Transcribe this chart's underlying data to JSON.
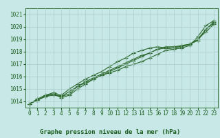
{
  "title": "Graphe pression niveau de la mer (hPa)",
  "xlabel_hours": [
    0,
    1,
    2,
    3,
    4,
    5,
    6,
    7,
    8,
    9,
    10,
    11,
    12,
    13,
    14,
    15,
    16,
    17,
    18,
    19,
    20,
    21,
    22,
    23
  ],
  "series": [
    [
      1013.8,
      1014.1,
      1014.4,
      1014.5,
      1014.4,
      1014.6,
      1015.2,
      1015.5,
      1015.8,
      1016.1,
      1016.3,
      1016.5,
      1016.8,
      1017.0,
      1017.2,
      1017.5,
      1017.8,
      1018.1,
      1018.2,
      1018.3,
      1018.5,
      1019.2,
      1020.1,
      1020.5
    ],
    [
      1013.8,
      1014.2,
      1014.5,
      1014.7,
      1014.5,
      1015.0,
      1015.4,
      1015.8,
      1016.1,
      1016.4,
      1016.8,
      1017.2,
      1017.5,
      1017.9,
      1018.1,
      1018.3,
      1018.4,
      1018.3,
      1018.2,
      1018.5,
      1018.6,
      1019.0,
      1019.6,
      1020.2
    ],
    [
      1013.8,
      1014.1,
      1014.4,
      1014.6,
      1014.4,
      1014.8,
      1015.2,
      1015.6,
      1015.9,
      1016.2,
      1016.5,
      1016.8,
      1017.1,
      1017.4,
      1017.7,
      1017.9,
      1018.2,
      1018.4,
      1018.4,
      1018.4,
      1018.6,
      1019.0,
      1019.8,
      1020.3
    ],
    [
      1013.8,
      1014.1,
      1014.5,
      1014.6,
      1014.3,
      1014.5,
      1015.0,
      1015.4,
      1015.8,
      1016.1,
      1016.4,
      1016.7,
      1017.0,
      1017.3,
      1017.6,
      1017.9,
      1018.2,
      1018.3,
      1018.4,
      1018.5,
      1018.6,
      1018.9,
      1019.8,
      1020.4
    ]
  ],
  "line_color": "#2d6a2d",
  "marker": "+",
  "marker_size": 4,
  "ylim": [
    1013.5,
    1021.5
  ],
  "yticks": [
    1014,
    1015,
    1016,
    1017,
    1018,
    1019,
    1020,
    1021
  ],
  "background_color": "#c8e8e8",
  "grid_color": "#aacccc",
  "text_color": "#1a5c1a",
  "title_fontsize": 6.5,
  "tick_fontsize": 5.5,
  "line_width": 0.8
}
